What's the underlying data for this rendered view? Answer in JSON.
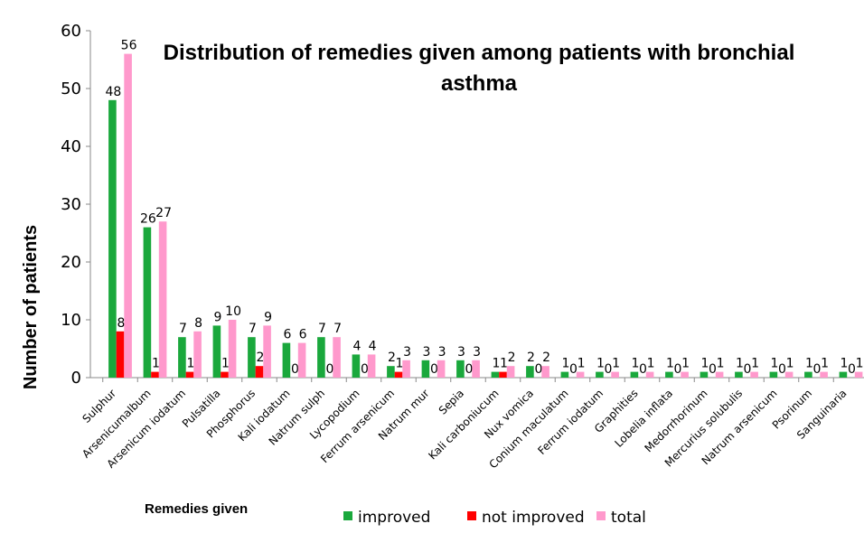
{
  "chart_data": {
    "type": "bar",
    "title": "Distribution of remedies given among patients with bronchial asthma",
    "y_label": "Number of patients",
    "x_label": "Remedies given",
    "categories": [
      "Sulphur",
      "Arsenicumalbum",
      "Arsenicum iodatum",
      "Pulsatilla",
      "Phosphorus",
      "Kali iodatum",
      "Natrum sulph",
      "Lycopodium",
      "Ferrum arsenicum",
      "Natrum mur",
      "Sepia",
      "Kali carboniucum",
      "Nux vomica",
      "Conium maculatum",
      "Ferrum iodatum",
      "Graphities",
      "Lobelia inflata",
      "Medorrhorinum",
      "Mercurius solubulis",
      "Natrum arsenicum",
      "Psorinum",
      "Sanguinaria"
    ],
    "series": [
      {
        "name": "improved",
        "color": "#1aa83c",
        "values": [
          48,
          26,
          7,
          9,
          7,
          6,
          7,
          4,
          2,
          3,
          3,
          1,
          2,
          1,
          1,
          1,
          1,
          1,
          1,
          1,
          1,
          1
        ]
      },
      {
        "name": "not improved",
        "color": "#ff0000",
        "values": [
          8,
          1,
          1,
          1,
          2,
          0,
          0,
          0,
          1,
          0,
          0,
          1,
          0,
          0,
          0,
          0,
          0,
          0,
          0,
          0,
          0,
          0
        ]
      },
      {
        "name": "total",
        "color": "#ff99cc",
        "values": [
          56,
          27,
          8,
          10,
          9,
          6,
          7,
          4,
          3,
          3,
          3,
          2,
          2,
          1,
          1,
          1,
          1,
          1,
          1,
          1,
          1,
          1
        ]
      }
    ],
    "ylim": [
      0,
      60
    ],
    "yticks": [
      0,
      10,
      20,
      30,
      40,
      50,
      60
    ],
    "legend": "bottom"
  }
}
